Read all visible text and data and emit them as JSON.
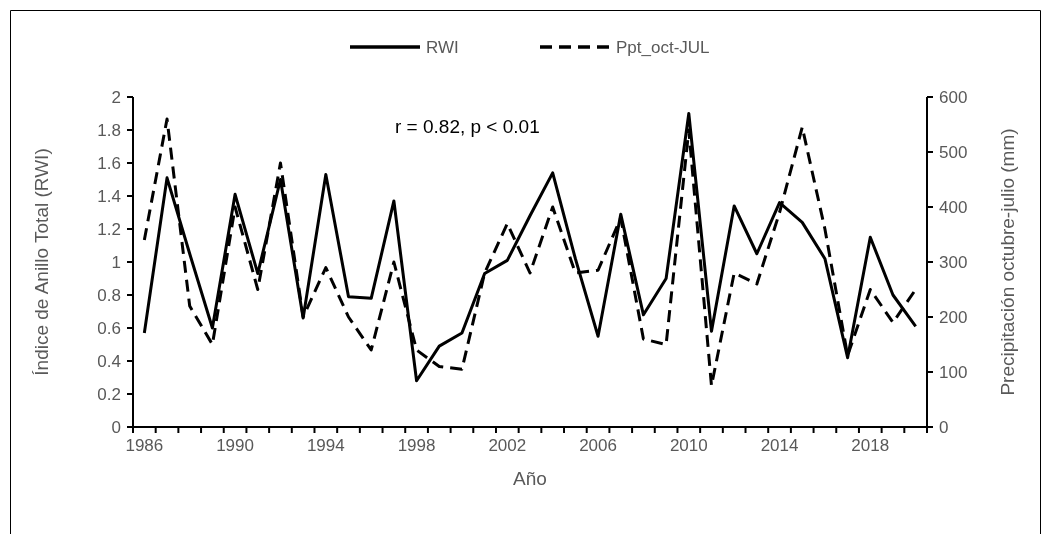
{
  "chart_data": {
    "type": "line",
    "xlabel": "Año",
    "ylabel": "Índice de Anillo Total (RWI)",
    "y2label": "Precipitación octubre-julio (mm)",
    "categories": [
      "1986",
      null,
      null,
      null,
      "1990",
      null,
      null,
      null,
      "1994",
      null,
      null,
      null,
      "1998",
      null,
      null,
      null,
      "2002",
      null,
      null,
      null,
      "2006",
      null,
      null,
      null,
      "2010",
      null,
      null,
      null,
      "2014",
      null,
      null,
      null,
      "2018",
      null,
      null
    ],
    "series": [
      {
        "name": "RWI",
        "color": "#000000",
        "line_style": "solid",
        "values": [
          0.57,
          1.51,
          1.05,
          0.6,
          1.41,
          0.93,
          1.5,
          0.66,
          1.53,
          0.79,
          0.78,
          1.37,
          0.28,
          0.49,
          0.57,
          0.93,
          1.01,
          1.28,
          1.54,
          1.02,
          0.55,
          1.29,
          0.68,
          0.9,
          1.9,
          0.58,
          1.34,
          1.05,
          1.36,
          1.24,
          1.02,
          0.42,
          1.15,
          0.8,
          0.61
        ]
      },
      {
        "name": "Ppt_oct-JUL",
        "color": "#000000",
        "line_style": "dashed",
        "axis": "y2",
        "values": [
          340,
          560,
          220,
          150,
          400,
          250,
          480,
          200,
          290,
          200,
          140,
          300,
          140,
          110,
          105,
          280,
          370,
          280,
          400,
          280,
          285,
          380,
          160,
          150,
          540,
          75,
          280,
          260,
          390,
          545,
          360,
          130,
          250,
          190,
          250
        ]
      }
    ],
    "ylim": [
      0,
      2
    ],
    "yticks": [
      0,
      {
        "value": 0.2,
        "label": "0.2"
      },
      {
        "value": 0.4,
        "label": "0.4"
      },
      {
        "value": 0.6,
        "label": "0.6"
      },
      {
        "value": 0.8,
        "label": "0.8"
      },
      1,
      {
        "value": 1.2,
        "label": "1.2"
      },
      {
        "value": 1.4,
        "label": "1.4"
      },
      {
        "value": 1.6,
        "label": "1.6"
      },
      {
        "value": 1.8,
        "label": "1.8"
      },
      2
    ],
    "y2lim": [
      0,
      600
    ],
    "y2ticks": [
      0,
      100,
      200,
      300,
      400,
      500,
      600
    ],
    "annotations": [
      "r = 0.82, p < 0.01"
    ],
    "legend": "top",
    "grid": false,
    "marker": "none"
  }
}
